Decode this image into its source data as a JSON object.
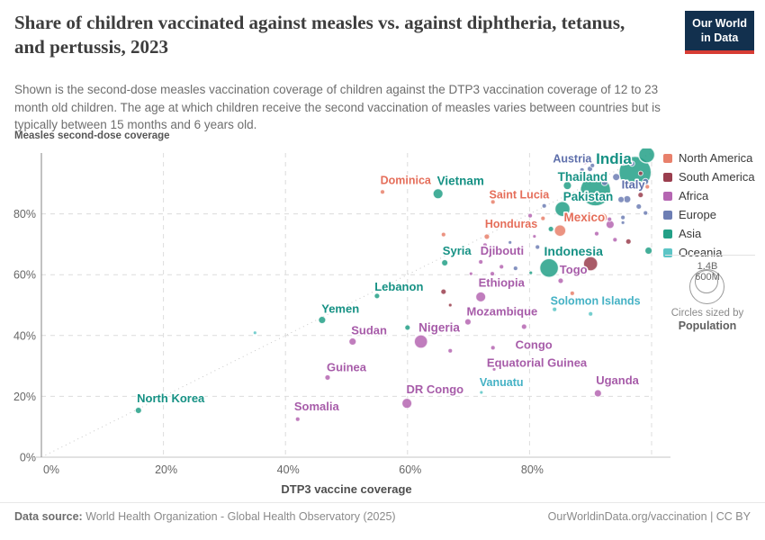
{
  "header": {
    "title": "Share of children vaccinated against measles vs. against diphtheria, tetanus, and pertussis, 2023",
    "subtitle": "Shown is the second-dose measles vaccination coverage of children against the DTP3 vaccination coverage of 12 to 23 month old children. The age at which children receive the second vaccination of measles varies between countries but is typically between 15 months and 6 years old.",
    "logo": {
      "line1": "Our World",
      "line2": "in Data"
    }
  },
  "legend": {
    "items": [
      {
        "label": "North America",
        "color": "#E8806B"
      },
      {
        "label": "South America",
        "color": "#9A3E4E"
      },
      {
        "label": "Africa",
        "color": "#B566B2"
      },
      {
        "label": "Europe",
        "color": "#6D7EB4"
      },
      {
        "label": "Asia",
        "color": "#23A087"
      },
      {
        "label": "Oceania",
        "color": "#5CC5C6"
      }
    ],
    "size_legend": {
      "big": "1.4B",
      "small": "600M",
      "caption1": "Circles sized by",
      "caption2": "Population"
    }
  },
  "footer": {
    "source_label": "Data source:",
    "source": " World Health Organization - Global Health Observatory (2025)",
    "right": "OurWorldinData.org/vaccination | CC BY"
  },
  "chart_data": {
    "type": "scatter",
    "title": "Share of children vaccinated against measles vs. against diphtheria, tetanus, and pertussis, 2023",
    "xlabel": "DTP3 vaccine coverage",
    "ylabel": "Measles second-dose coverage",
    "xlim": [
      0,
      100
    ],
    "ylim": [
      0,
      100
    ],
    "x_ticks": [
      0,
      20,
      40,
      60,
      80
    ],
    "y_ticks": [
      0,
      20,
      40,
      60,
      80
    ],
    "grid": true,
    "diagonal_parity_line": true,
    "legend_position": "right",
    "size_by": "Population",
    "continents": {
      "NA": {
        "name": "North America",
        "color": "#E8806B",
        "label_color": "#E56E5A"
      },
      "SA": {
        "name": "South America",
        "color": "#9A3E4E",
        "label_color": "#8E3B4C"
      },
      "AF": {
        "name": "Africa",
        "color": "#B566B2",
        "label_color": "#A75CA9"
      },
      "EU": {
        "name": "Europe",
        "color": "#6D7EB4",
        "label_color": "#5E6FAB"
      },
      "AS": {
        "name": "Asia",
        "color": "#23A087",
        "label_color": "#169184"
      },
      "OC": {
        "name": "Oceania",
        "color": "#5CC5C6",
        "label_color": "#45B2C5"
      }
    },
    "points": [
      {
        "n": "India",
        "x": 90.8,
        "y": 87.6,
        "r": 17,
        "c": "AS",
        "label": {
          "t": "India",
          "lx": 93.8,
          "ly": 96.5,
          "s": 17
        }
      },
      {
        "n": "",
        "x": 97.3,
        "y": 93.6,
        "r": 18,
        "c": "AS"
      },
      {
        "n": "",
        "x": 99.2,
        "y": 99.4,
        "r": 9,
        "c": "AS"
      },
      {
        "n": "Austria",
        "x": 89.9,
        "y": 94.8,
        "r": 3,
        "c": "EU",
        "label": {
          "t": "Austria",
          "lx": 87.0,
          "ly": 96.9,
          "s": 12.5
        }
      },
      {
        "n": "Thailand",
        "x": 86.2,
        "y": 89.3,
        "r": 4.5,
        "c": "AS",
        "label": {
          "t": "Thailand",
          "lx": 88.7,
          "ly": 90.8,
          "s": 13.5
        }
      },
      {
        "n": "Italy",
        "x": 96.0,
        "y": 84.8,
        "r": 4,
        "c": "EU",
        "label": {
          "t": "Italy",
          "lx": 97.0,
          "ly": 88.3,
          "s": 13
        }
      },
      {
        "n": "Pakistan",
        "x": 85.4,
        "y": 81.6,
        "r": 8.5,
        "c": "AS",
        "label": {
          "t": "Pakistan",
          "lx": 89.6,
          "ly": 84.3,
          "s": 13.5
        }
      },
      {
        "n": "Mexico",
        "x": 85.0,
        "y": 74.5,
        "r": 6.5,
        "c": "NA",
        "label": {
          "t": "Mexico",
          "lx": 89.0,
          "ly": 77.5,
          "s": 13.5
        }
      },
      {
        "n": "Dominica",
        "x": 55.9,
        "y": 87.2,
        "r": 2.5,
        "c": "NA",
        "label": {
          "t": "Dominica",
          "lx": 59.7,
          "ly": 89.8,
          "s": 12.5
        }
      },
      {
        "n": "Vietnam",
        "x": 65.0,
        "y": 86.6,
        "r": 5.5,
        "c": "AS",
        "label": {
          "t": "Vietnam",
          "lx": 68.7,
          "ly": 89.5,
          "s": 13.5
        }
      },
      {
        "n": "Saint Lucia",
        "x": 74.0,
        "y": 83.9,
        "r": 2.5,
        "c": "NA",
        "label": {
          "t": "Saint Lucia",
          "lx": 78.3,
          "ly": 85.1,
          "s": 12.5
        }
      },
      {
        "n": "Honduras",
        "x": 73.0,
        "y": 72.5,
        "r": 3,
        "c": "NA",
        "label": {
          "t": "Honduras",
          "lx": 77.0,
          "ly": 75.4,
          "s": 12.5
        }
      },
      {
        "n": "Syria",
        "x": 66.1,
        "y": 63.9,
        "r": 3.5,
        "c": "AS",
        "label": {
          "t": "Syria",
          "lx": 68.1,
          "ly": 66.6,
          "s": 13
        }
      },
      {
        "n": "Djibouti",
        "x": 72.0,
        "y": 64.2,
        "r": 2.5,
        "c": "AF",
        "label": {
          "t": "Djibouti",
          "lx": 75.5,
          "ly": 66.6,
          "s": 13
        }
      },
      {
        "n": "Indonesia",
        "x": 83.2,
        "y": 62.2,
        "r": 10.5,
        "c": "AS",
        "label": {
          "t": "Indonesia",
          "lx": 87.2,
          "ly": 66.3,
          "s": 14
        }
      },
      {
        "n": "Togo",
        "x": 85.1,
        "y": 58.0,
        "r": 3,
        "c": "AF",
        "label": {
          "t": "Togo",
          "lx": 87.2,
          "ly": 60.4,
          "s": 13
        }
      },
      {
        "n": "",
        "x": 90.0,
        "y": 63.6,
        "r": 8,
        "c": "SA"
      },
      {
        "n": "Solomon Islands",
        "x": 84.1,
        "y": 48.6,
        "r": 2.5,
        "c": "OC",
        "label": {
          "t": "Solomon Islands",
          "lx": 90.8,
          "ly": 50.1,
          "s": 12.5
        }
      },
      {
        "n": "Ethiopia",
        "x": 72.0,
        "y": 52.7,
        "r": 5.5,
        "c": "AF",
        "label": {
          "t": "Ethiopia",
          "lx": 75.4,
          "ly": 56.0,
          "s": 13
        }
      },
      {
        "n": "Mozambique",
        "x": 69.9,
        "y": 44.5,
        "r": 3.5,
        "c": "AF",
        "label": {
          "t": "Mozambique",
          "lx": 75.5,
          "ly": 46.6,
          "s": 13
        }
      },
      {
        "n": "Lebanon",
        "x": 55.0,
        "y": 53.0,
        "r": 3,
        "c": "AS",
        "label": {
          "t": "Lebanon",
          "lx": 58.6,
          "ly": 54.8,
          "s": 13
        }
      },
      {
        "n": "Yemen",
        "x": 46.0,
        "y": 45.1,
        "r": 4,
        "c": "AS",
        "label": {
          "t": "Yemen",
          "lx": 49.0,
          "ly": 47.5,
          "s": 13
        }
      },
      {
        "n": "Sudan",
        "x": 51.0,
        "y": 38.0,
        "r": 4,
        "c": "AF",
        "label": {
          "t": "Sudan",
          "lx": 53.7,
          "ly": 40.4,
          "s": 13
        }
      },
      {
        "n": "Nigeria",
        "x": 62.2,
        "y": 38.0,
        "r": 7.5,
        "c": "AF",
        "label": {
          "t": "Nigeria",
          "lx": 65.2,
          "ly": 41.3,
          "s": 13.5
        }
      },
      {
        "n": "Congo",
        "x": 74.0,
        "y": 36.0,
        "r": 2.5,
        "c": "AF",
        "label": {
          "t": "Congo",
          "lx": 80.7,
          "ly": 35.7,
          "s": 13
        }
      },
      {
        "n": "Guinea",
        "x": 46.9,
        "y": 26.2,
        "r": 3,
        "c": "AF",
        "label": {
          "t": "Guinea",
          "lx": 50.0,
          "ly": 28.3,
          "s": 13
        }
      },
      {
        "n": "Equatorial Guinea",
        "x": 74.2,
        "y": 28.9,
        "r": 2,
        "c": "AF",
        "label": {
          "t": "Equatorial Guinea",
          "lx": 81.2,
          "ly": 29.8,
          "s": 13
        }
      },
      {
        "n": "Vanuatu",
        "x": 72.1,
        "y": 21.3,
        "r": 2,
        "c": "OC",
        "label": {
          "t": "Vanuatu",
          "lx": 75.4,
          "ly": 23.3,
          "s": 12.5
        }
      },
      {
        "n": "Uganda",
        "x": 91.2,
        "y": 21.0,
        "r": 4,
        "c": "AF",
        "label": {
          "t": "Uganda",
          "lx": 94.4,
          "ly": 23.9,
          "s": 13
        }
      },
      {
        "n": "DR Congo",
        "x": 59.9,
        "y": 17.7,
        "r": 5.5,
        "c": "AF",
        "label": {
          "t": "DR Congo",
          "lx": 64.5,
          "ly": 21.0,
          "s": 13
        }
      },
      {
        "n": "North Korea",
        "x": 15.9,
        "y": 15.4,
        "r": 3.5,
        "c": "AS",
        "label": {
          "t": "North Korea",
          "lx": 21.2,
          "ly": 18.0,
          "s": 13
        }
      },
      {
        "n": "Somalia",
        "x": 42.0,
        "y": 12.5,
        "r": 2.5,
        "c": "AF",
        "label": {
          "t": "Somalia",
          "lx": 45.1,
          "ly": 15.4,
          "s": 13
        }
      },
      {
        "n": "",
        "x": 35.0,
        "y": 40.9,
        "r": 2,
        "c": "OC"
      },
      {
        "n": "",
        "x": 65.9,
        "y": 73.2,
        "r": 2.5,
        "c": "NA"
      },
      {
        "n": "",
        "x": 65.9,
        "y": 54.4,
        "r": 3,
        "c": "SA"
      },
      {
        "n": "",
        "x": 67.0,
        "y": 50.0,
        "r": 2,
        "c": "SA"
      },
      {
        "n": "",
        "x": 70.4,
        "y": 60.3,
        "r": 2,
        "c": "AF"
      },
      {
        "n": "",
        "x": 73.9,
        "y": 60.3,
        "r": 2.5,
        "c": "AF"
      },
      {
        "n": "",
        "x": 75.4,
        "y": 62.6,
        "r": 2.5,
        "c": "AF"
      },
      {
        "n": "",
        "x": 72.7,
        "y": 69.7,
        "r": 2.5,
        "c": "AF"
      },
      {
        "n": "",
        "x": 77.7,
        "y": 62.1,
        "r": 2.5,
        "c": "EU"
      },
      {
        "n": "",
        "x": 80.2,
        "y": 60.6,
        "r": 2,
        "c": "AS"
      },
      {
        "n": "",
        "x": 79.1,
        "y": 42.9,
        "r": 3,
        "c": "AF"
      },
      {
        "n": "",
        "x": 60.0,
        "y": 42.6,
        "r": 3,
        "c": "AS"
      },
      {
        "n": "",
        "x": 67.0,
        "y": 35.0,
        "r": 2.5,
        "c": "AF"
      },
      {
        "n": "",
        "x": 90.0,
        "y": 47.1,
        "r": 2.5,
        "c": "OC"
      },
      {
        "n": "",
        "x": 87.0,
        "y": 53.9,
        "r": 2.5,
        "c": "NA"
      },
      {
        "n": "",
        "x": 92.0,
        "y": 78.8,
        "r": 5,
        "c": "NA"
      },
      {
        "n": "",
        "x": 93.1,
        "y": 78.2,
        "r": 2.5,
        "c": "AF"
      },
      {
        "n": "",
        "x": 93.2,
        "y": 76.5,
        "r": 4.5,
        "c": "AF"
      },
      {
        "n": "",
        "x": 95.0,
        "y": 84.7,
        "r": 3.5,
        "c": "EU"
      },
      {
        "n": "",
        "x": 97.9,
        "y": 82.4,
        "r": 3,
        "c": "EU"
      },
      {
        "n": "",
        "x": 99.0,
        "y": 80.3,
        "r": 2.5,
        "c": "EU"
      },
      {
        "n": "",
        "x": 95.3,
        "y": 78.8,
        "r": 2.5,
        "c": "EU"
      },
      {
        "n": "",
        "x": 95.3,
        "y": 77.1,
        "r": 2,
        "c": "EU"
      },
      {
        "n": "",
        "x": 91.0,
        "y": 73.5,
        "r": 2.5,
        "c": "AF"
      },
      {
        "n": "",
        "x": 96.2,
        "y": 70.9,
        "r": 3,
        "c": "SA"
      },
      {
        "n": "",
        "x": 94.0,
        "y": 71.5,
        "r": 2.5,
        "c": "AF"
      },
      {
        "n": "",
        "x": 99.5,
        "y": 67.9,
        "r": 4,
        "c": "AS"
      },
      {
        "n": "",
        "x": 95.3,
        "y": 97.4,
        "r": 5,
        "c": "AF"
      },
      {
        "n": "",
        "x": 93.5,
        "y": 97.9,
        "r": 2.5,
        "c": "NA"
      },
      {
        "n": "",
        "x": 94.2,
        "y": 92.1,
        "r": 4,
        "c": "EU"
      },
      {
        "n": "",
        "x": 99.0,
        "y": 90.6,
        "r": 3.5,
        "c": "EU"
      },
      {
        "n": "",
        "x": 98.2,
        "y": 86.2,
        "r": 3,
        "c": "SA"
      },
      {
        "n": "",
        "x": 98.2,
        "y": 93.3,
        "r": 2.5,
        "c": "SA"
      },
      {
        "n": "",
        "x": 99.3,
        "y": 88.9,
        "r": 2.5,
        "c": "NA"
      },
      {
        "n": "",
        "x": 90.3,
        "y": 95.9,
        "r": 2.5,
        "c": "EU"
      },
      {
        "n": "",
        "x": 88.6,
        "y": 94.4,
        "r": 2.5,
        "c": "EU"
      },
      {
        "n": "",
        "x": 89.1,
        "y": 97.1,
        "r": 3,
        "c": "AF"
      },
      {
        "n": "",
        "x": 83.5,
        "y": 75.0,
        "r": 3,
        "c": "AS"
      },
      {
        "n": "",
        "x": 81.3,
        "y": 69.1,
        "r": 2.5,
        "c": "EU"
      },
      {
        "n": "",
        "x": 85.1,
        "y": 68.5,
        "r": 2.5,
        "c": "AF"
      },
      {
        "n": "",
        "x": 82.4,
        "y": 82.6,
        "r": 2.5,
        "c": "EU"
      },
      {
        "n": "",
        "x": 82.2,
        "y": 78.5,
        "r": 2.5,
        "c": "NA"
      },
      {
        "n": "",
        "x": 80.1,
        "y": 79.4,
        "r": 2.5,
        "c": "AF"
      },
      {
        "n": "",
        "x": 79.2,
        "y": 76.8,
        "r": 3,
        "c": "NA"
      },
      {
        "n": "",
        "x": 80.8,
        "y": 72.6,
        "r": 2,
        "c": "AF"
      },
      {
        "n": "",
        "x": 76.8,
        "y": 70.6,
        "r": 2,
        "c": "EU"
      },
      {
        "n": "",
        "x": 92.3,
        "y": 90.3,
        "r": 3.5,
        "c": "EU"
      },
      {
        "n": "",
        "x": 96.8,
        "y": 96.5,
        "r": 3,
        "c": "EU"
      }
    ]
  }
}
